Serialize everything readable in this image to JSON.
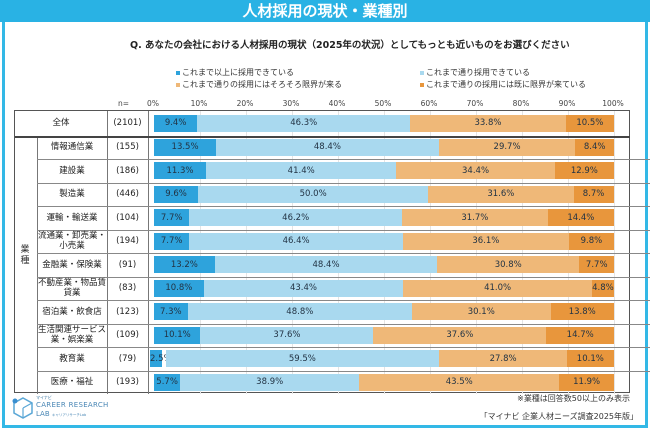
{
  "header": {
    "title": "人材採用の現状・業種別"
  },
  "question": "Q.  あなたの会社における人材採用の現状（2025年の状況）としてもっとも近いものをお選びください",
  "colors": {
    "header": "#29b2e4",
    "s1": "#2ea3dc",
    "s2": "#a9d9ef",
    "s3": "#efb878",
    "s4": "#e8963c"
  },
  "chart_data": {
    "type": "bar",
    "orientation": "horizontal-stacked-100",
    "n_label": "n=",
    "xticks": [
      "0%",
      "10%",
      "20%",
      "30%",
      "40%",
      "50%",
      "60%",
      "70%",
      "80%",
      "90%",
      "100%"
    ],
    "xlim": [
      0,
      100
    ],
    "group_label": "業種",
    "series": [
      {
        "name": "これまで以上に採用できている",
        "color": "#2ea3dc"
      },
      {
        "name": "これまで通り採用できている",
        "color": "#a9d9ef"
      },
      {
        "name": "これまで通りの採用にはそろそろ限界が来る",
        "color": "#efb878"
      },
      {
        "name": "これまで通りの採用には既に限界が来ている",
        "color": "#e8963c"
      }
    ],
    "rows": [
      {
        "label": "全体",
        "n": "(2101)",
        "values": [
          9.4,
          46.3,
          33.8,
          10.5
        ],
        "labels": [
          "9.4%",
          "46.3%",
          "33.8%",
          "10.5%"
        ]
      },
      {
        "label": "情報通信業",
        "n": "(155)",
        "values": [
          13.5,
          48.4,
          29.7,
          8.4
        ],
        "labels": [
          "13.5%",
          "48.4%",
          "29.7%",
          "8.4%"
        ]
      },
      {
        "label": "建設業",
        "n": "(186)",
        "values": [
          11.3,
          41.4,
          34.4,
          12.9
        ],
        "labels": [
          "11.3%",
          "41.4%",
          "34.4%",
          "12.9%"
        ]
      },
      {
        "label": "製造業",
        "n": "(446)",
        "values": [
          9.6,
          50.0,
          31.6,
          8.7
        ],
        "labels": [
          "9.6%",
          "50.0%",
          "31.6%",
          "8.7%"
        ]
      },
      {
        "label": "運輸・輸送業",
        "n": "(104)",
        "values": [
          7.7,
          46.2,
          31.7,
          14.4
        ],
        "labels": [
          "7.7%",
          "46.2%",
          "31.7%",
          "14.4%"
        ]
      },
      {
        "label": "流通業・卸売業・小売業",
        "n": "(194)",
        "values": [
          7.7,
          46.4,
          36.1,
          9.8
        ],
        "labels": [
          "7.7%",
          "46.4%",
          "36.1%",
          "9.8%"
        ]
      },
      {
        "label": "金融業・保険業",
        "n": "(91)",
        "values": [
          13.2,
          48.4,
          30.8,
          7.7
        ],
        "labels": [
          "13.2%",
          "48.4%",
          "30.8%",
          "7.7%"
        ]
      },
      {
        "label": "不動産業・物品賃貸業",
        "n": "(83)",
        "values": [
          10.8,
          43.4,
          41.0,
          4.8
        ],
        "labels": [
          "10.8%",
          "43.4%",
          "41.0%",
          "4.8%"
        ]
      },
      {
        "label": "宿泊業・飲食店",
        "n": "(123)",
        "values": [
          7.3,
          48.8,
          30.1,
          13.8
        ],
        "labels": [
          "7.3%",
          "48.8%",
          "30.1%",
          "13.8%"
        ]
      },
      {
        "label": "生活関連サービス業・娯楽業",
        "n": "(109)",
        "values": [
          10.1,
          37.6,
          37.6,
          14.7
        ],
        "labels": [
          "10.1%",
          "37.6%",
          "37.6%",
          "14.7%"
        ]
      },
      {
        "label": "教育業",
        "n": "(79)",
        "values": [
          2.5,
          59.5,
          27.8,
          10.1
        ],
        "labels": [
          "2.5%",
          "59.5%",
          "27.8%",
          "10.1%"
        ]
      },
      {
        "label": "医療・福祉",
        "n": "(193)",
        "values": [
          5.7,
          38.9,
          43.5,
          11.9
        ],
        "labels": [
          "5.7%",
          "38.9%",
          "43.5%",
          "11.9%"
        ]
      }
    ],
    "grid": true,
    "legend_placement": "top"
  },
  "footer": {
    "note": "※業種は回答数50以上のみ表示",
    "source": "「マイナビ 企業人材ニーズ調査2025年版」"
  },
  "logo": {
    "small": "マイナビ",
    "name": "CAREER RESEARCH",
    "lab": "LAB",
    "sub": "キャリアリサーチLab"
  }
}
